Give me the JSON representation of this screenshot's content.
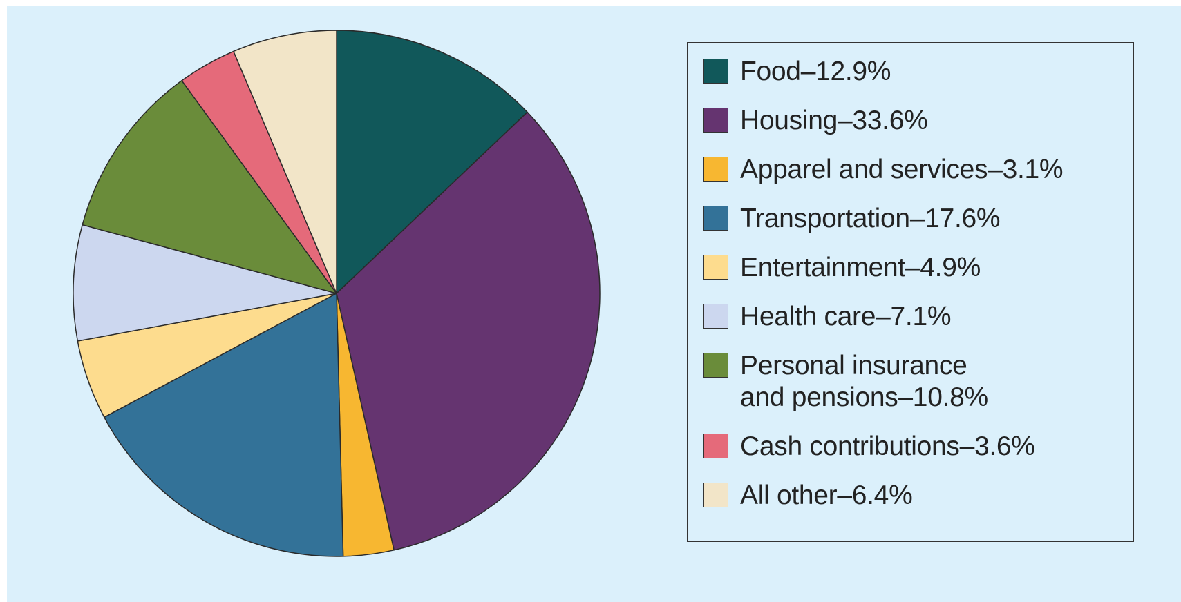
{
  "chart_data": {
    "type": "pie",
    "categories": [
      "Food–12.9%",
      "Housing–33.6%",
      "Apparel and services–3.1%",
      "Transportation–17.6%",
      "Entertainment–4.9%",
      "Health care–7.1%",
      "Personal insurance\nand pensions–10.8%",
      "Cash contributions–3.6%",
      "All other–6.4%"
    ],
    "values": [
      12.9,
      33.6,
      3.1,
      17.6,
      4.9,
      7.1,
      10.8,
      3.6,
      6.4
    ],
    "colors": [
      "#11585a",
      "#653470",
      "#f7b731",
      "#337298",
      "#fddc8e",
      "#ccd7ef",
      "#6a8c3a",
      "#e56a7a",
      "#f2e5c8"
    ]
  }
}
